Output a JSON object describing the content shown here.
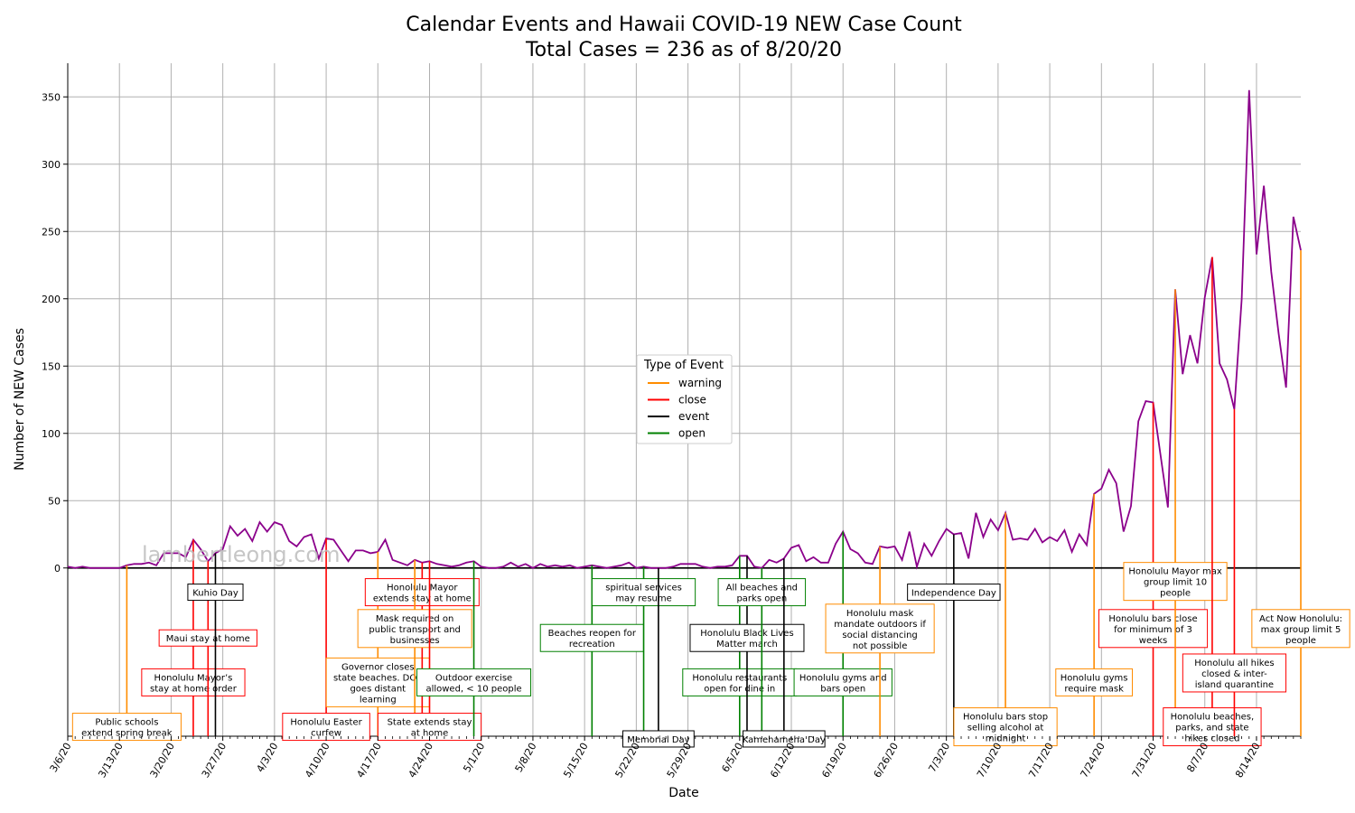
{
  "chart_data": {
    "type": "line",
    "title": "Calendar Events and Hawaii COVID-19 NEW Case Count",
    "subtitle": "Total Cases = 236 as of 8/20/20",
    "xlabel": "Date",
    "ylabel": "Number of NEW Cases",
    "watermark": "lambertleong.com",
    "x_start": "2020-03-06",
    "ylim": [
      -125,
      375
    ],
    "yticks": [
      0,
      50,
      100,
      150,
      200,
      250,
      300,
      350
    ],
    "xticks": [
      "3/6/20",
      "3/13/20",
      "3/20/20",
      "3/27/20",
      "4/3/20",
      "4/10/20",
      "4/17/20",
      "4/24/20",
      "5/1/20",
      "5/8/20",
      "5/15/20",
      "5/22/20",
      "5/29/20",
      "6/5/20",
      "6/12/20",
      "6/19/20",
      "6/26/20",
      "7/3/20",
      "7/10/20",
      "7/17/20",
      "7/24/20",
      "7/31/20",
      "8/7/20",
      "8/14/20"
    ],
    "grid": true,
    "series_color": "#8b008b",
    "values": [
      1,
      0,
      1,
      0,
      0,
      0,
      0,
      0,
      2,
      3,
      3,
      4,
      2,
      11,
      11,
      11,
      8,
      21,
      14,
      5,
      11,
      14,
      31,
      24,
      29,
      20,
      34,
      27,
      34,
      32,
      20,
      16,
      23,
      25,
      7,
      22,
      21,
      13,
      5,
      13,
      13,
      11,
      12,
      21,
      6,
      4,
      2,
      6,
      4,
      5,
      3,
      2,
      1,
      2,
      4,
      5,
      1,
      0,
      0,
      1,
      4,
      1,
      3,
      0,
      3,
      1,
      2,
      1,
      2,
      0,
      1,
      2,
      1,
      0,
      1,
      2,
      4,
      0,
      1,
      0,
      0,
      0,
      1,
      3,
      3,
      3,
      1,
      0,
      1,
      1,
      2,
      9,
      9,
      1,
      0,
      6,
      4,
      7,
      15,
      17,
      5,
      8,
      4,
      4,
      18,
      27,
      14,
      11,
      4,
      3,
      16,
      15,
      16,
      6,
      27,
      1,
      18,
      9,
      20,
      29,
      25,
      26,
      7,
      41,
      23,
      36,
      28,
      41,
      21,
      22,
      21,
      29,
      19,
      23,
      20,
      28,
      12,
      25,
      17,
      55,
      59,
      73,
      63,
      27,
      46,
      109,
      124,
      123,
      84,
      45,
      207,
      144,
      173,
      152,
      201,
      231,
      152,
      140,
      118,
      200,
      355,
      233,
      284,
      220,
      174,
      134,
      261,
      236
    ],
    "legend": {
      "title": "Type of Event",
      "position": "center",
      "entries": [
        {
          "label": "warning",
          "color": "#ff8c00"
        },
        {
          "label": "close",
          "color": "#ff0000"
        },
        {
          "label": "event",
          "color": "#000000"
        },
        {
          "label": "open",
          "color": "#008000"
        }
      ]
    },
    "event_colors": {
      "warning": "#ff8c00",
      "close": "#ff0000",
      "event": "#000000",
      "open": "#008000"
    },
    "events": [
      {
        "date": "2020-03-14",
        "kind": "warning",
        "lines": [
          "Public schools",
          "extend spring break"
        ]
      },
      {
        "date": "2020-03-23",
        "kind": "close",
        "lines": [
          "Honolulu Mayor’s",
          "stay at home order"
        ]
      },
      {
        "date": "2020-03-25",
        "kind": "close",
        "lines": [
          "Maui stay at home"
        ]
      },
      {
        "date": "2020-03-26",
        "kind": "event",
        "lines": [
          "Kuhio Day"
        ]
      },
      {
        "date": "2020-04-10",
        "kind": "close",
        "lines": [
          "Honolulu Easter",
          "curfew"
        ]
      },
      {
        "date": "2020-04-17",
        "kind": "warning",
        "lines": [
          "Governor closes",
          "state beaches. DOE",
          "goes distant",
          "learning"
        ]
      },
      {
        "date": "2020-04-23",
        "kind": "close",
        "lines": [
          "Honolulu Mayor",
          "extends stay at home"
        ]
      },
      {
        "date": "2020-04-22",
        "kind": "warning",
        "lines": [
          "Mask required on",
          "public transport and",
          "businesses"
        ]
      },
      {
        "date": "2020-04-24",
        "kind": "close",
        "lines": [
          "State extends stay",
          "at home"
        ]
      },
      {
        "date": "2020-04-30",
        "kind": "open",
        "lines": [
          "Outdoor exercise",
          "allowed, < 10 people"
        ]
      },
      {
        "date": "2020-05-16",
        "kind": "open",
        "lines": [
          "Beaches reopen for",
          "recreation"
        ]
      },
      {
        "date": "2020-05-23",
        "kind": "open",
        "lines": [
          "spiritual services",
          "may resume"
        ]
      },
      {
        "date": "2020-05-25",
        "kind": "event",
        "lines": [
          "Memorial Day"
        ]
      },
      {
        "date": "2020-06-05",
        "kind": "open",
        "lines": [
          "Honolulu restaurants",
          "open for dine in"
        ]
      },
      {
        "date": "2020-06-06",
        "kind": "event",
        "lines": [
          "Honolulu Black Lives",
          "Matter march"
        ]
      },
      {
        "date": "2020-06-08",
        "kind": "open",
        "lines": [
          "All beaches and",
          "parks open"
        ]
      },
      {
        "date": "2020-06-11",
        "kind": "event",
        "lines": [
          "Kamehameha Day"
        ]
      },
      {
        "date": "2020-06-19",
        "kind": "open",
        "lines": [
          "Honolulu gyms and",
          "bars open"
        ]
      },
      {
        "date": "2020-06-24",
        "kind": "warning",
        "lines": [
          "Honolulu mask",
          "mandate outdoors if",
          "social distancing",
          "not possible"
        ]
      },
      {
        "date": "2020-07-04",
        "kind": "event",
        "lines": [
          "Independence Day"
        ]
      },
      {
        "date": "2020-07-11",
        "kind": "warning",
        "lines": [
          "Honolulu bars stop",
          "selling alcohol at",
          "midnight"
        ]
      },
      {
        "date": "2020-07-23",
        "kind": "warning",
        "lines": [
          "Honolulu gyms",
          "require mask"
        ]
      },
      {
        "date": "2020-07-31",
        "kind": "close",
        "lines": [
          "Honolulu bars close",
          "for minimum of 3",
          "weeks"
        ]
      },
      {
        "date": "2020-08-03",
        "kind": "warning",
        "lines": [
          "Honolulu Mayor max",
          "group limit 10",
          "people"
        ]
      },
      {
        "date": "2020-08-08",
        "kind": "close",
        "lines": [
          "Honolulu beaches,",
          "parks, and state",
          "hikes closed"
        ]
      },
      {
        "date": "2020-08-11",
        "kind": "close",
        "lines": [
          "Honolulu all hikes",
          "closed & inter-",
          "island quarantine"
        ]
      },
      {
        "date": "2020-08-20",
        "kind": "warning",
        "lines": [
          "Act Now Honolulu:",
          "max group limit 5",
          "people"
        ]
      }
    ]
  }
}
